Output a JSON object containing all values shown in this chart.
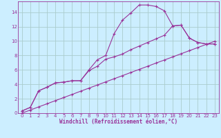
{
  "xlabel": "Windchill (Refroidissement éolien,°C)",
  "bg_color": "#cceeff",
  "grid_color": "#aacccc",
  "line_color": "#993399",
  "xlim": [
    -0.5,
    23.5
  ],
  "ylim": [
    0,
    15.5
  ],
  "xticks": [
    0,
    1,
    2,
    3,
    4,
    5,
    6,
    7,
    8,
    9,
    10,
    11,
    12,
    13,
    14,
    15,
    16,
    17,
    18,
    19,
    20,
    21,
    22,
    23
  ],
  "yticks": [
    0,
    2,
    4,
    6,
    8,
    10,
    12,
    14
  ],
  "curve1_x": [
    0,
    1,
    2,
    3,
    4,
    5,
    6,
    7,
    8,
    9,
    10,
    11,
    12,
    13,
    14,
    15,
    16,
    17,
    18,
    19,
    20,
    21,
    22,
    23
  ],
  "curve1_y": [
    0.3,
    0.8,
    3.1,
    3.6,
    4.2,
    4.3,
    4.5,
    4.5,
    6.0,
    7.4,
    8.0,
    11.0,
    12.9,
    13.9,
    15.0,
    15.0,
    14.8,
    14.2,
    12.1,
    12.2,
    10.4,
    9.8,
    9.6,
    9.6
  ],
  "curve2_x": [
    0,
    1,
    2,
    3,
    4,
    5,
    6,
    7,
    8,
    9,
    10,
    11,
    12,
    13,
    14,
    15,
    16,
    17,
    18,
    19,
    20,
    21,
    22,
    23
  ],
  "curve2_y": [
    0.3,
    0.8,
    3.1,
    3.6,
    4.2,
    4.3,
    4.5,
    4.5,
    5.9,
    6.5,
    7.5,
    7.8,
    8.2,
    8.8,
    9.3,
    9.8,
    10.3,
    10.8,
    12.1,
    12.2,
    10.4,
    9.8,
    9.6,
    9.6
  ],
  "curve3_x": [
    0,
    1,
    2,
    3,
    4,
    5,
    6,
    7,
    8,
    9,
    10,
    11,
    12,
    13,
    14,
    15,
    16,
    17,
    18,
    19,
    20,
    21,
    22,
    23
  ],
  "curve3_y": [
    0.0,
    0.43,
    0.87,
    1.3,
    1.74,
    2.17,
    2.6,
    3.04,
    3.47,
    3.9,
    4.34,
    4.77,
    5.2,
    5.64,
    6.07,
    6.5,
    6.94,
    7.37,
    7.8,
    8.24,
    8.67,
    9.1,
    9.54,
    9.96
  ],
  "tick_fontsize": 5.0,
  "xlabel_fontsize": 5.5
}
